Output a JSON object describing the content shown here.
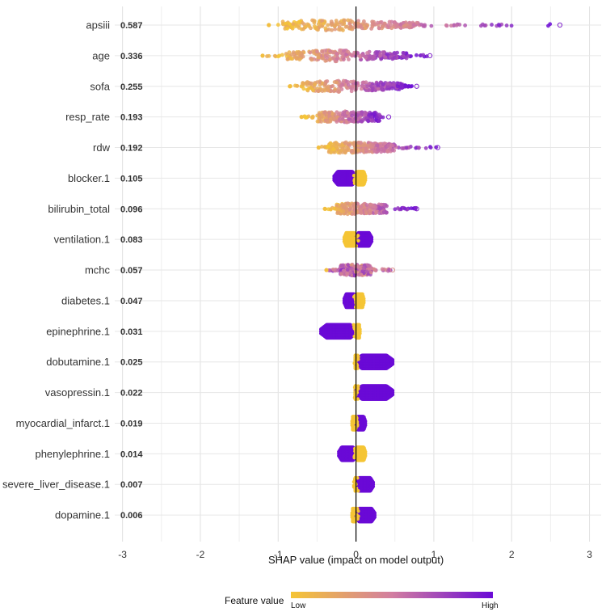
{
  "chart_data": {
    "type": "beeswarm",
    "xlabel": "SHAP value (impact on model output)",
    "xlim": [
      -3.1,
      3.15
    ],
    "xticks": [
      -3,
      -2,
      -1,
      0,
      1,
      2,
      3
    ],
    "xtick_labels": [
      "-3",
      "-2",
      "-1",
      "0",
      "1",
      "2",
      "3"
    ],
    "legend": {
      "title": "Feature value",
      "low_label": "Low",
      "high_label": "High",
      "position": "bottom"
    },
    "colors": {
      "low": "#f5c535",
      "mid": "#d27ea0",
      "high": "#6a0ad6",
      "grid": "#e4e4e4",
      "zero_line": "#000000"
    },
    "features": [
      {
        "name": "apsiii",
        "importance": "0.587",
        "min": -1.12,
        "max": 2.62,
        "bulk": [
          -0.95,
          0.9
        ],
        "color_trend": "pos",
        "style": "cont"
      },
      {
        "name": "age",
        "importance": "0.336",
        "min": -1.2,
        "max": 0.95,
        "bulk": [
          -0.9,
          0.7
        ],
        "color_trend": "pos",
        "style": "cont"
      },
      {
        "name": "sofa",
        "importance": "0.255",
        "min": -0.85,
        "max": 0.78,
        "bulk": [
          -0.7,
          0.6
        ],
        "color_trend": "pos",
        "style": "cont"
      },
      {
        "name": "resp_rate",
        "importance": "0.193",
        "min": -0.7,
        "max": 0.42,
        "bulk": [
          -0.5,
          0.3
        ],
        "color_trend": "pos",
        "style": "cont"
      },
      {
        "name": "rdw",
        "importance": "0.192",
        "min": -0.48,
        "max": 1.05,
        "bulk": [
          -0.35,
          0.5
        ],
        "color_trend": "pos",
        "style": "cont"
      },
      {
        "name": "blocker.1",
        "importance": "0.105",
        "min": -0.28,
        "max": 0.12,
        "bulk": [
          -0.25,
          0.12
        ],
        "color_trend": "neg",
        "style": "binary"
      },
      {
        "name": "bilirubin_total",
        "importance": "0.096",
        "min": -0.4,
        "max": 0.78,
        "bulk": [
          -0.25,
          0.4
        ],
        "color_trend": "pos",
        "style": "cont"
      },
      {
        "name": "ventilation.1",
        "importance": "0.083",
        "min": -0.15,
        "max": 0.2,
        "bulk": [
          -0.15,
          0.2
        ],
        "color_trend": "pos",
        "style": "binary"
      },
      {
        "name": "mchc",
        "importance": "0.057",
        "min": -0.38,
        "max": 0.47,
        "bulk": [
          -0.2,
          0.2
        ],
        "color_trend": "mixed",
        "style": "cont"
      },
      {
        "name": "diabetes.1",
        "importance": "0.047",
        "min": -0.15,
        "max": 0.1,
        "bulk": [
          -0.15,
          0.1
        ],
        "color_trend": "neg",
        "style": "binary"
      },
      {
        "name": "epinephrine.1",
        "importance": "0.031",
        "min": -0.45,
        "max": 0.05,
        "bulk": [
          -0.45,
          0.05
        ],
        "color_trend": "neg",
        "style": "binary"
      },
      {
        "name": "dobutamine.1",
        "importance": "0.025",
        "min": -0.01,
        "max": 0.47,
        "bulk": [
          -0.01,
          0.47
        ],
        "color_trend": "pos",
        "style": "binary"
      },
      {
        "name": "vasopressin.1",
        "importance": "0.022",
        "min": -0.01,
        "max": 0.47,
        "bulk": [
          -0.01,
          0.47
        ],
        "color_trend": "pos",
        "style": "binary"
      },
      {
        "name": "myocardial_infarct.1",
        "importance": "0.019",
        "min": -0.05,
        "max": 0.12,
        "bulk": [
          -0.05,
          0.12
        ],
        "color_trend": "pos",
        "style": "binary"
      },
      {
        "name": "phenylephrine.1",
        "importance": "0.014",
        "min": -0.22,
        "max": 0.12,
        "bulk": [
          -0.22,
          0.12
        ],
        "color_trend": "neg",
        "style": "binary"
      },
      {
        "name": "severe_liver_disease.1",
        "importance": "0.007",
        "min": -0.01,
        "max": 0.22,
        "bulk": [
          -0.01,
          0.22
        ],
        "color_trend": "pos",
        "style": "binary"
      },
      {
        "name": "dopamine.1",
        "importance": "0.006",
        "min": -0.05,
        "max": 0.24,
        "bulk": [
          -0.05,
          0.24
        ],
        "color_trend": "pos",
        "style": "binary"
      }
    ]
  }
}
